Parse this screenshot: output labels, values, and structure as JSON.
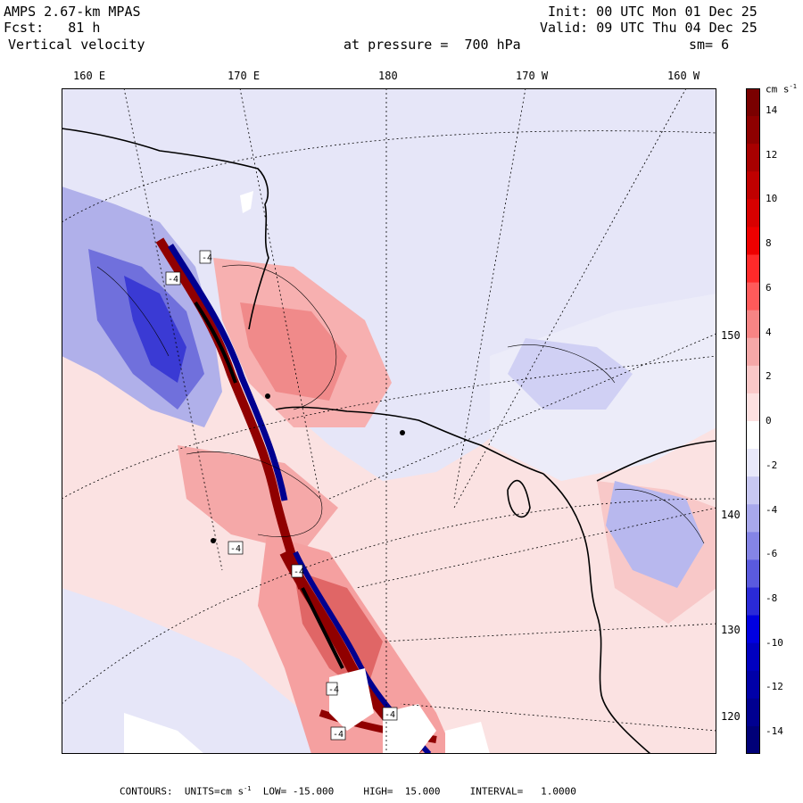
{
  "header": {
    "model": "AMPS 2.67-km MPAS",
    "forecast": "Fcst:   81 h",
    "field": "Vertical velocity",
    "init": "Init: 00 UTC Mon 01 Dec 25",
    "valid": "Valid: 09 UTC Thu 04 Dec 25",
    "level": "at pressure =  700 hPa",
    "smoothing": "sm= 6"
  },
  "map": {
    "top_longitude_labels": [
      "160 E",
      "170 E",
      "180",
      "170 W",
      "160 W"
    ],
    "right_latitude_labels": [
      "150 W",
      "140 W",
      "130 W",
      "120 W"
    ],
    "interior_labels": [
      "-4",
      "-4",
      "-4",
      "-4",
      "-4",
      "-4",
      "-4"
    ]
  },
  "colorbar": {
    "units_label": "cm s",
    "units_exponent": "-1",
    "tick_labels": [
      "14",
      "12",
      "10",
      "8",
      "6",
      "4",
      "2",
      "0",
      "-2",
      "-4",
      "-6",
      "-8",
      "-10",
      "-12",
      "-14"
    ],
    "colors": [
      "#7a0000",
      "#8e0000",
      "#a80000",
      "#c00000",
      "#d80000",
      "#ee0000",
      "#ff2a2a",
      "#ff5a5a",
      "#f78484",
      "#f5a8a8",
      "#fac8c8",
      "#fde0e0",
      "#ffffff",
      "#e8e8fa",
      "#c8c8f2",
      "#a8a8ec",
      "#8484e6",
      "#5a5ade",
      "#2a2ad8",
      "#0000e0",
      "#0000c0",
      "#0000a8",
      "#000090",
      "#000078"
    ],
    "colors_of": "colour bands from top (+15 cm s-1) to bottom (-15 cm s-1)"
  },
  "footer": {
    "contours": "CONTOURS:",
    "units": "UNITS=cm s",
    "units_exponent": "-1",
    "low": "LOW= -15.000",
    "high": "HIGH=  15.000",
    "interval": "INTERVAL=   1.0000"
  }
}
